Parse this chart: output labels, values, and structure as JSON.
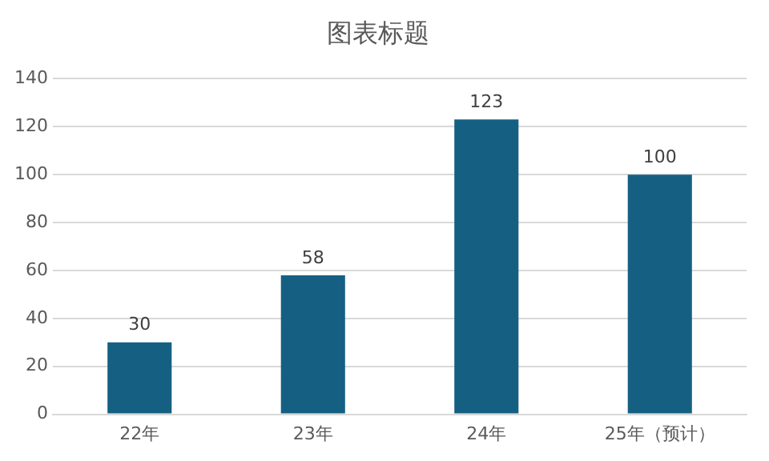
{
  "chart_data": {
    "type": "bar",
    "title": "图表标题",
    "categories": [
      "22年",
      "23年",
      "24年",
      "25年（预计）"
    ],
    "values": [
      30,
      58,
      123,
      100
    ],
    "color": "#156082",
    "ylim": [
      0,
      140
    ],
    "yticks": [
      0,
      20,
      40,
      60,
      80,
      100,
      120,
      140
    ],
    "grid": "y",
    "data_labels": true,
    "legend": false
  }
}
